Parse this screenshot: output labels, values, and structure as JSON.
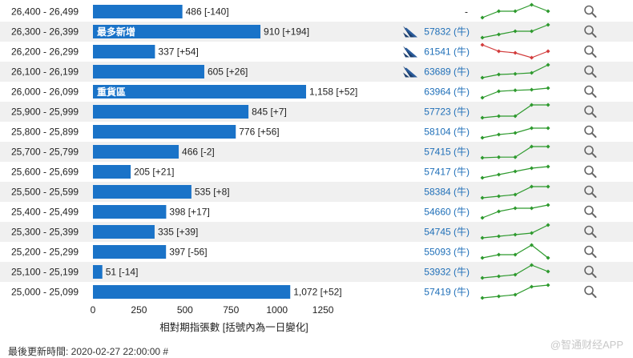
{
  "chart_data": {
    "type": "bar",
    "orientation": "horizontal",
    "categories": [
      "26,400 - 26,499",
      "26,300 - 26,399",
      "26,200 - 26,299",
      "26,100 - 26,199",
      "26,000 - 26,099",
      "25,900 - 25,999",
      "25,800 - 25,899",
      "25,700 - 25,799",
      "25,600 - 25,699",
      "25,500 - 25,599",
      "25,400 - 25,499",
      "25,300 - 25,399",
      "25,200 - 25,299",
      "25,100 - 25,199",
      "25,000 - 25,099"
    ],
    "values": [
      486,
      910,
      337,
      605,
      1158,
      845,
      776,
      466,
      205,
      535,
      398,
      335,
      397,
      51,
      1072
    ],
    "value_labels": [
      "486 [-140]",
      "910 [+194]",
      "337 [+54]",
      "605 [+26]",
      "1,158 [+52]",
      "845 [+7]",
      "776 [+56]",
      "466 [-2]",
      "205 [+21]",
      "535 [+8]",
      "398 [+17]",
      "335 [+39]",
      "397 [-56]",
      "51 [-14]",
      "1,072 [+52]"
    ],
    "tags": [
      {
        "row": 1,
        "text": "最多新增"
      },
      {
        "row": 4,
        "text": "重貨區"
      }
    ],
    "xlabel": "相對期指張數 [括號內為一日變化]",
    "xlim": [
      0,
      1250
    ],
    "xticks": [
      "0",
      "250",
      "500",
      "750",
      "1000",
      "1250"
    ],
    "bar_color": "#1a73c8",
    "stripe_color": "#f0f0f0",
    "codes": [
      {
        "text": "-",
        "icon": false
      },
      {
        "text": "57832 (牛)",
        "icon": true
      },
      {
        "text": "61541 (牛)",
        "icon": true
      },
      {
        "text": "63689 (牛)",
        "icon": true
      },
      {
        "text": "63964 (牛)",
        "icon": false
      },
      {
        "text": "57723 (牛)",
        "icon": false
      },
      {
        "text": "58104 (牛)",
        "icon": false
      },
      {
        "text": "57415 (牛)",
        "icon": false
      },
      {
        "text": "57417 (牛)",
        "icon": false
      },
      {
        "text": "58384 (牛)",
        "icon": false
      },
      {
        "text": "54660 (牛)",
        "icon": false
      },
      {
        "text": "54745 (牛)",
        "icon": false
      },
      {
        "text": "55093 (牛)",
        "icon": false
      },
      {
        "text": "53932 (牛)",
        "icon": false
      },
      {
        "text": "57419 (牛)",
        "icon": false
      }
    ],
    "sparklines": [
      {
        "values": [
          1,
          3,
          3,
          5,
          3
        ],
        "color": "#2e9a2e"
      },
      {
        "values": [
          1,
          2,
          3,
          3,
          5
        ],
        "color": "#2e9a2e"
      },
      {
        "values": [
          5,
          3,
          2.5,
          1,
          3
        ],
        "color": "#d23c3c"
      },
      {
        "values": [
          1,
          2,
          2.2,
          2.5,
          5
        ],
        "color": "#2e9a2e"
      },
      {
        "values": [
          1,
          3,
          3.3,
          3.5,
          4
        ],
        "color": "#2e9a2e"
      },
      {
        "values": [
          1,
          1.5,
          1.5,
          5,
          5
        ],
        "color": "#2e9a2e"
      },
      {
        "values": [
          1,
          2,
          2.5,
          4,
          4
        ],
        "color": "#2e9a2e"
      },
      {
        "values": [
          1,
          1.2,
          1.2,
          4.5,
          4.5
        ],
        "color": "#2e9a2e"
      },
      {
        "values": [
          1,
          2,
          3,
          4,
          4.5
        ],
        "color": "#2e9a2e"
      },
      {
        "values": [
          1,
          1.5,
          2,
          4.5,
          4.5
        ],
        "color": "#2e9a2e"
      },
      {
        "values": [
          1,
          3,
          4,
          4,
          5
        ],
        "color": "#2e9a2e"
      },
      {
        "values": [
          1,
          1.5,
          2,
          2.5,
          5
        ],
        "color": "#2e9a2e"
      },
      {
        "values": [
          1,
          2,
          2,
          5,
          1
        ],
        "color": "#2e9a2e"
      },
      {
        "values": [
          1,
          1.5,
          2,
          5,
          3
        ],
        "color": "#2e9a2e"
      },
      {
        "values": [
          1,
          1.5,
          2,
          4.5,
          5
        ],
        "color": "#2e9a2e"
      }
    ],
    "icons": {
      "bank_logo": "bank-logo-icon",
      "search": "magnifier-icon"
    }
  },
  "footer": {
    "updated": "最後更新時間: 2020-02-27 22:00:00 #"
  },
  "watermark": "@智通财经APP"
}
